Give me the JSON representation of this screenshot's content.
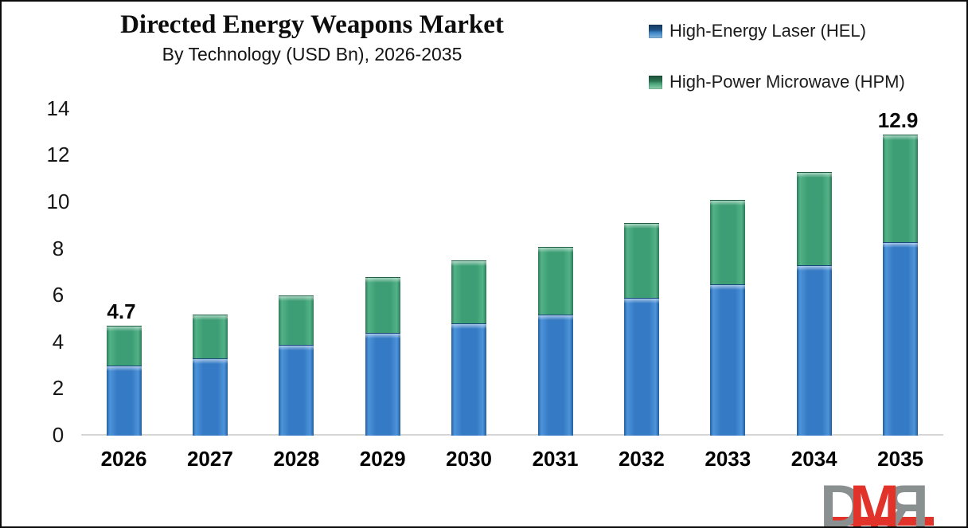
{
  "chart_data": {
    "type": "bar",
    "stacked": true,
    "title": "Directed Energy Weapons Market",
    "subtitle": "By Technology (USD Bn), 2026-2035",
    "value_unit": "USD Bn",
    "categories": [
      "2026",
      "2027",
      "2028",
      "2029",
      "2030",
      "2031",
      "2032",
      "2033",
      "2034",
      "2035"
    ],
    "series": [
      {
        "name": "High-Energy Laser (HEL)",
        "color": "#357AC4",
        "color_light": "#4E94DA",
        "color_dark": "#205E9E",
        "values": [
          3.0,
          3.3,
          3.9,
          4.4,
          4.8,
          5.2,
          5.9,
          6.5,
          7.3,
          8.3
        ]
      },
      {
        "name": "High-Power Microwave (HPM)",
        "color": "#3D9E75",
        "color_light": "#53B287",
        "color_dark": "#2C7A59",
        "values": [
          1.7,
          1.9,
          2.1,
          2.4,
          2.7,
          2.9,
          3.2,
          3.6,
          4.0,
          4.6
        ]
      }
    ],
    "totals": [
      4.7,
      5.2,
      6.0,
      6.8,
      7.5,
      8.1,
      9.1,
      10.1,
      11.3,
      12.9
    ],
    "data_labels": [
      {
        "index": 0,
        "text": "4.7"
      },
      {
        "index": 9,
        "text": "12.9"
      }
    ],
    "y_axis": {
      "min": 0,
      "max": 14,
      "step": 2,
      "ticks": [
        "0",
        "2",
        "4",
        "6",
        "8",
        "10",
        "12",
        "14"
      ]
    },
    "x_axis": {
      "line_color": "#D6D6D6"
    },
    "grid": false,
    "legend_position": "top-right",
    "text_color": "#1A1A1A"
  },
  "logo": {
    "text": "DMR",
    "letters": [
      "D",
      "M",
      "R"
    ],
    "gray": "#8A9090",
    "red": "#E2332A"
  }
}
